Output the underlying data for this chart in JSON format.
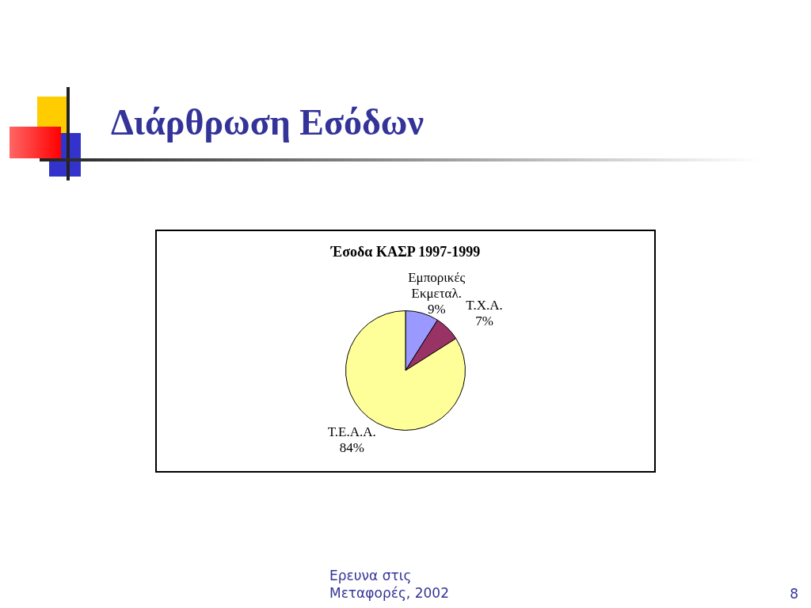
{
  "chart_data": {
    "type": "pie",
    "title": "Διάρθρωση Εσόδων",
    "subtitle": "Έσοδα ΚΑΣΡ 1997-1999",
    "categories": [
      "Εμπορικές Εκμεταλ.",
      "Τ.Χ.Α.",
      "Τ.Ε.Α.Α."
    ],
    "values": [
      9,
      7,
      84
    ],
    "value_labels": [
      "9%",
      "7%",
      "84%"
    ],
    "colors": [
      "#9999ff",
      "#993366",
      "#ffff99"
    ],
    "legend": false,
    "annotations": [
      "Ερευνα στις Μεταφορές, 2002",
      "8"
    ]
  }
}
